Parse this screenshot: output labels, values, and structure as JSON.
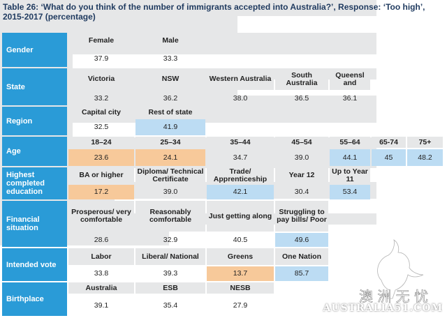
{
  "title": "Table 26: ‘What do you think of the number of immigrants accepted into Australia?’, Response: ‘Too high’, 2015-2017 (percentage)",
  "groups": [
    {
      "label": "Gender",
      "headers": [
        "Female",
        "Male"
      ],
      "values": [
        "37.9",
        "33.3"
      ]
    },
    {
      "label": "State",
      "headers": [
        "Victoria",
        "NSW",
        "Western Australia",
        "South Australia",
        "Queensl and"
      ],
      "values": [
        "33.2",
        "36.2",
        "38.0",
        "36.5",
        "36.1"
      ]
    },
    {
      "label": "Region",
      "headers": [
        "Capital city",
        "Rest of state"
      ],
      "values": [
        "32.5",
        "41.9"
      ]
    },
    {
      "label": "Age",
      "headers": [
        "18–24",
        "25–34",
        "35–44",
        "45–54",
        "55–64",
        "65-74",
        "75+"
      ],
      "values": [
        "23.6",
        "24.1",
        "34.7",
        "39.0",
        "44.1",
        "45",
        "48.2"
      ]
    },
    {
      "label": "Highest completed education",
      "headers": [
        "BA or higher",
        "Diploma/ Technical Certificate",
        "Trade/ Apprenticeship",
        "Year 12",
        "Up to Year 11"
      ],
      "values": [
        "17.2",
        "39.0",
        "42.1",
        "30.4",
        "53.4"
      ]
    },
    {
      "label": "Financial situation",
      "headers": [
        "Prosperous/ very comfortable",
        "Reasonably comfortable",
        "Just getting along",
        "Struggling to pay bills/ Poor"
      ],
      "values": [
        "28.6",
        "32.9",
        "40.5",
        "49.6"
      ]
    },
    {
      "label": "Intended vote",
      "headers": [
        "Labor",
        "Liberal/ National",
        "Greens",
        "One Nation"
      ],
      "values": [
        "33.8",
        "39.3",
        "13.7",
        "85.7"
      ]
    },
    {
      "label": "Birthplace",
      "headers": [
        "Australia",
        "ESB",
        "NESB"
      ],
      "values": [
        "39.1",
        "35.4",
        "27.9"
      ]
    }
  ],
  "colors": {
    "label_bg": "#2a9bd7",
    "header_bg": "#e6e7e8",
    "high": "#bcdcf3",
    "low": "#f7c99a"
  },
  "watermark": {
    "text": "AUSTRALIA51.COM",
    "glyph": "澳 洲 无 忧"
  }
}
